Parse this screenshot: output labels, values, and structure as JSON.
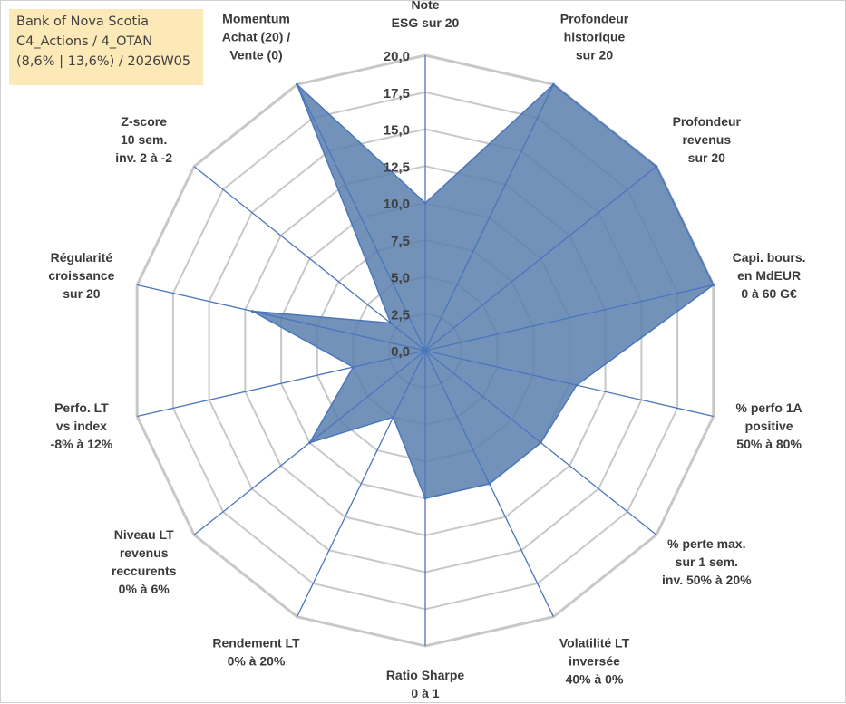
{
  "title_box": {
    "line1": "Bank of Nova Scotia",
    "line2": "C4_Actions / 4_OTAN",
    "line3": "(8,6% | 13,6%) / 2026W05"
  },
  "colors": {
    "fill": "#5b7fad",
    "stroke": "#4a76bd",
    "grid": "#c8c8c8",
    "title_bg": "#fde9b8"
  },
  "chart_data": {
    "type": "radar",
    "title": "",
    "rlim": [
      0,
      20
    ],
    "grid": true,
    "ticks": [
      "0,0",
      "2,5",
      "5,0",
      "7,5",
      "10,0",
      "12,5",
      "15,0",
      "17,5",
      "20,0"
    ],
    "axes": [
      [
        "Note",
        "ESG sur 20"
      ],
      [
        "Profondeur",
        "historique",
        "sur 20"
      ],
      [
        "Profondeur",
        "revenus",
        "sur 20"
      ],
      [
        "Capi. bours.",
        "en MdEUR",
        "0 à 60 G€"
      ],
      [
        "% perfo 1A",
        "positive",
        "50% à 80%"
      ],
      [
        "% perte max.",
        "sur 1 sem.",
        "inv. 50% à 20%"
      ],
      [
        "Volatilité LT",
        "inversée",
        "40% à 0%"
      ],
      [
        "Ratio Sharpe",
        "0 à 1"
      ],
      [
        "Rendement LT",
        "0% à 20%"
      ],
      [
        "Niveau LT",
        "revenus",
        "reccurents",
        "0% à 6%"
      ],
      [
        "Perfo. LT",
        "vs index",
        "-8% à 12%"
      ],
      [
        "Régularité",
        "croissance",
        "sur 20"
      ],
      [
        "Z-score",
        "10 sem.",
        "inv. 2 à -2"
      ],
      [
        "Momentum",
        "Achat (20) /",
        "Vente (0)"
      ]
    ],
    "series": [
      {
        "values": [
          10,
          20,
          20,
          20,
          10.5,
          10,
          10,
          10,
          5,
          10,
          5,
          12,
          3,
          20
        ]
      }
    ]
  }
}
